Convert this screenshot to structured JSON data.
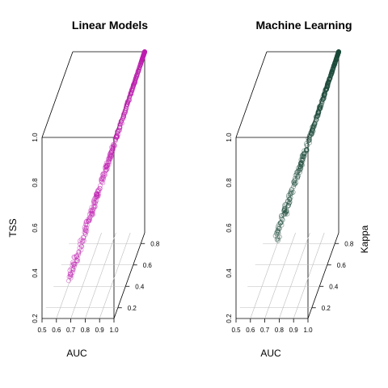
{
  "chart_data": [
    {
      "type": "scatter3d",
      "title": "Linear Models",
      "xlabel": "AUC",
      "ylabel": "Kappa",
      "zlabel": "TSS",
      "xlim": [
        0.5,
        1.0
      ],
      "ylim": [
        0.1,
        0.9
      ],
      "zlim": [
        0.2,
        1.0
      ],
      "x_ticks": [
        "0.5",
        "0.6",
        "0.7",
        "0.8",
        "0.9",
        "1.0"
      ],
      "y_ticks": [
        "0.2",
        "0.4",
        "0.6",
        "0.8"
      ],
      "z_ticks": [
        "0.2",
        "0.4",
        "0.6",
        "0.8",
        "1.0"
      ],
      "point_color": "#bf1fb0",
      "point_count": 460,
      "point_range": {
        "auc": [
          0.66,
          1.0
        ],
        "kappa": [
          0.2,
          0.9
        ],
        "tss": [
          0.32,
          1.0
        ]
      },
      "points_sample": [
        {
          "auc": 0.66,
          "kappa": 0.22,
          "tss": 0.34
        },
        {
          "auc": 0.7,
          "kappa": 0.3,
          "tss": 0.42
        },
        {
          "auc": 0.75,
          "kappa": 0.4,
          "tss": 0.52
        },
        {
          "auc": 0.8,
          "kappa": 0.5,
          "tss": 0.61
        },
        {
          "auc": 0.85,
          "kappa": 0.61,
          "tss": 0.71
        },
        {
          "auc": 0.9,
          "kappa": 0.72,
          "tss": 0.81
        },
        {
          "auc": 0.95,
          "kappa": 0.82,
          "tss": 0.91
        },
        {
          "auc": 1.0,
          "kappa": 0.9,
          "tss": 1.0
        }
      ]
    },
    {
      "type": "scatter3d",
      "title": "Machine Learning",
      "xlabel": "AUC",
      "ylabel": "Kappa",
      "zlabel": "",
      "xlim": [
        0.5,
        1.0
      ],
      "ylim": [
        0.1,
        0.9
      ],
      "zlim": [
        0.2,
        1.0
      ],
      "x_ticks": [
        "0.5",
        "0.6",
        "0.7",
        "0.8",
        "0.9",
        "1.0"
      ],
      "y_ticks": [
        "0.2",
        "0.4",
        "0.6",
        "0.8"
      ],
      "z_ticks": [
        "0.2",
        "0.4",
        "0.6",
        "0.8",
        "1.0"
      ],
      "point_color": "#1e4a3a",
      "point_count": 460,
      "point_range": {
        "auc": [
          0.72,
          1.0
        ],
        "kappa": [
          0.3,
          0.9
        ],
        "tss": [
          0.45,
          1.0
        ]
      },
      "points_sample": [
        {
          "auc": 0.72,
          "kappa": 0.32,
          "tss": 0.46
        },
        {
          "auc": 0.77,
          "kappa": 0.42,
          "tss": 0.55
        },
        {
          "auc": 0.82,
          "kappa": 0.53,
          "tss": 0.64
        },
        {
          "auc": 0.86,
          "kappa": 0.62,
          "tss": 0.72
        },
        {
          "auc": 0.9,
          "kappa": 0.71,
          "tss": 0.8
        },
        {
          "auc": 0.95,
          "kappa": 0.81,
          "tss": 0.9
        },
        {
          "auc": 1.0,
          "kappa": 0.9,
          "tss": 1.0
        }
      ]
    }
  ]
}
